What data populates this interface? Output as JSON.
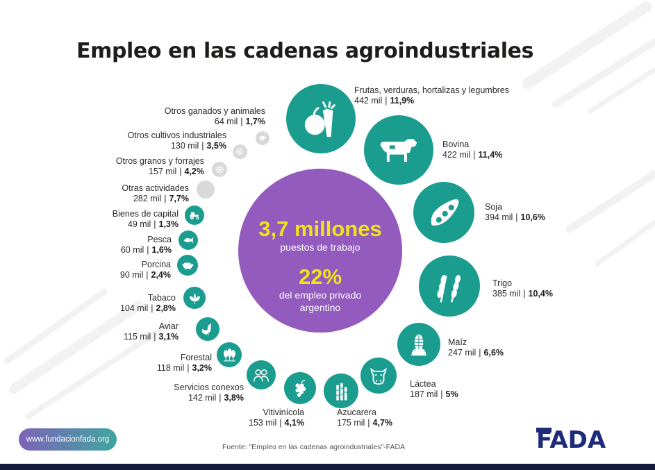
{
  "title": "Empleo en las cadenas agroindustriales",
  "center": {
    "headline": "3,7 millones",
    "headline_sub": "puestos de trabajo",
    "percent": "22%",
    "percent_sub_1": "del empleo privado",
    "percent_sub_2": "argentino"
  },
  "chart_data": {
    "type": "bubble",
    "unit": "mil",
    "items": [
      {
        "name": "Frutas, verduras, hortalizas y legumbres",
        "jobs_label": "442 mil",
        "share_label": "11,9%",
        "jobs": 442,
        "share": 11.9,
        "icon": "fruit-vegetables-icon"
      },
      {
        "name": "Bovina",
        "jobs_label": "422 mil",
        "share_label": "11,4%",
        "jobs": 422,
        "share": 11.4,
        "icon": "cow-icon"
      },
      {
        "name": "Soja",
        "jobs_label": "394 mil",
        "share_label": "10,6%",
        "jobs": 394,
        "share": 10.6,
        "icon": "soy-pod-icon"
      },
      {
        "name": "Trigo",
        "jobs_label": "385 mil",
        "share_label": "10,4%",
        "jobs": 385,
        "share": 10.4,
        "icon": "wheat-icon"
      },
      {
        "name": "Maíz",
        "jobs_label": "247 mil",
        "share_label": "6,6%",
        "jobs": 247,
        "share": 6.6,
        "icon": "corn-icon"
      },
      {
        "name": "Láctea",
        "jobs_label": "187 mil",
        "share_label": "5%",
        "jobs": 187,
        "share": 5,
        "icon": "dairy-cow-icon"
      },
      {
        "name": "Azucarera",
        "jobs_label": "175 mil",
        "share_label": "4,7%",
        "jobs": 175,
        "share": 4.7,
        "icon": "sugarcane-icon"
      },
      {
        "name": "Vitivinícola",
        "jobs_label": "153 mil",
        "share_label": "4,1%",
        "jobs": 153,
        "share": 4.1,
        "icon": "grapes-icon"
      },
      {
        "name": "Servicios conexos",
        "jobs_label": "142 mil",
        "share_label": "3,8%",
        "jobs": 142,
        "share": 3.8,
        "icon": "people-icon"
      },
      {
        "name": "Forestal",
        "jobs_label": "118 mil",
        "share_label": "3,2%",
        "jobs": 118,
        "share": 3.2,
        "icon": "trees-icon"
      },
      {
        "name": "Aviar",
        "jobs_label": "115 mil",
        "share_label": "3,1%",
        "jobs": 115,
        "share": 3.1,
        "icon": "hen-icon"
      },
      {
        "name": "Tabaco",
        "jobs_label": "104 mil",
        "share_label": "2,8%",
        "jobs": 104,
        "share": 2.8,
        "icon": "tobacco-leaf-icon"
      },
      {
        "name": "Porcina",
        "jobs_label": "90 mil",
        "share_label": "2,4%",
        "jobs": 90,
        "share": 2.4,
        "icon": "pig-icon"
      },
      {
        "name": "Pesca",
        "jobs_label": "60 mil",
        "share_label": "1,6%",
        "jobs": 60,
        "share": 1.6,
        "icon": "fish-icon"
      },
      {
        "name": "Bienes de capital",
        "jobs_label": "49 mil",
        "share_label": "1,3%",
        "jobs": 49,
        "share": 1.3,
        "icon": "tractor-icon"
      },
      {
        "name": "Otras actividades",
        "jobs_label": "282 mil",
        "share_label": "7,7%",
        "jobs": 282,
        "share": 7.7,
        "icon": ""
      },
      {
        "name": "Otros granos y forrajes",
        "jobs_label": "157 mil",
        "share_label": "4,2%",
        "jobs": 157,
        "share": 4.2,
        "icon": "grain-icon"
      },
      {
        "name": "Otros cultivos industriales",
        "jobs_label": "130 mil",
        "share_label": "3,5%",
        "jobs": 130,
        "share": 3.5,
        "icon": "cotton-icon"
      },
      {
        "name": "Otros ganados y animales",
        "jobs_label": "64 mil",
        "share_label": "1,7%",
        "jobs": 64,
        "share": 1.7,
        "icon": "sheep-icon"
      }
    ]
  },
  "colors": {
    "teal": "#1a9c8f",
    "purple": "#925bbd",
    "yellow": "#f2e21a",
    "grey": "#d9d9d9",
    "navy": "#131a3a"
  },
  "footer": {
    "website": "www.fundacionfada.org",
    "source": "Fuente: \"Empleo en las cadenas agroindustriales\"-FADA",
    "logo_text": "FADA"
  }
}
